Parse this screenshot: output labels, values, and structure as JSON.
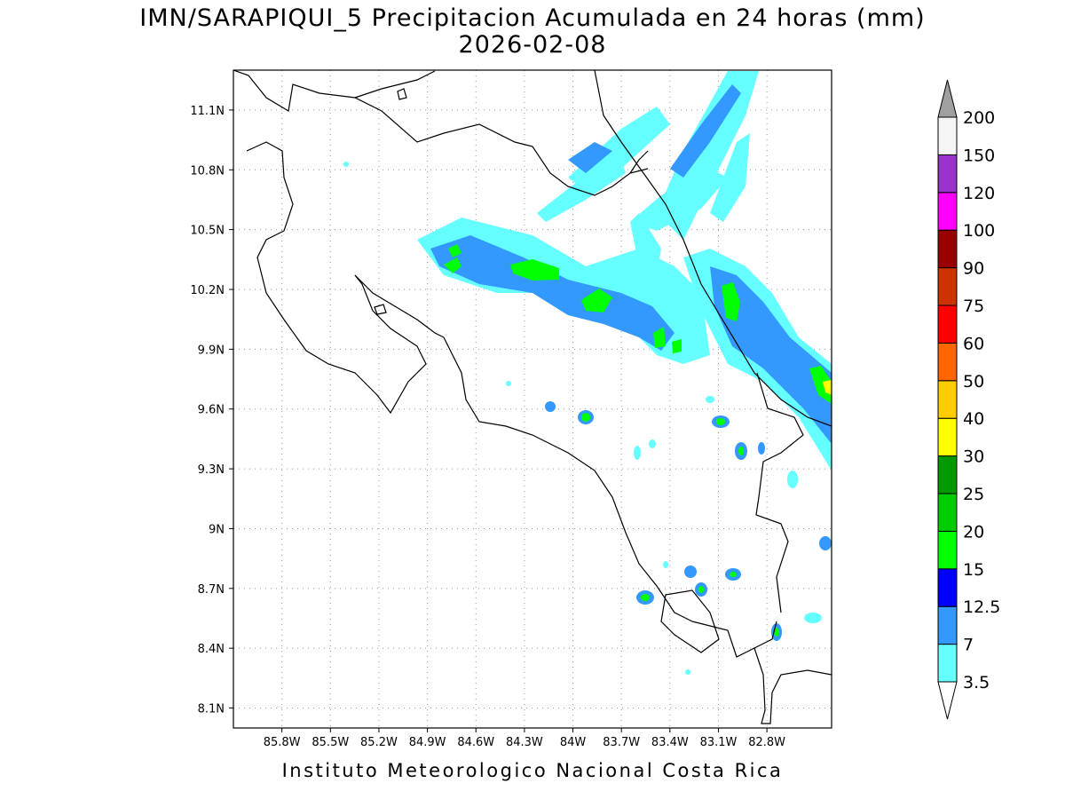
{
  "title": {
    "line1": "IMN/SARAPIQUI_5 Precipitacion Acumulada en 24 horas (mm)",
    "line2": "2026-02-08"
  },
  "footer": "Instituto Meteorologico Nacional Costa Rica",
  "map": {
    "lon_range": [
      -86.1,
      -82.4
    ],
    "lat_range": [
      8.0,
      11.3
    ],
    "lat_ticks": [
      {
        "value": 11.1,
        "label": "11.1N"
      },
      {
        "value": 10.8,
        "label": "10.8N"
      },
      {
        "value": 10.5,
        "label": "10.5N"
      },
      {
        "value": 10.2,
        "label": "10.2N"
      },
      {
        "value": 9.9,
        "label": "9.9N"
      },
      {
        "value": 9.6,
        "label": "9.6N"
      },
      {
        "value": 9.3,
        "label": "9.3N"
      },
      {
        "value": 9.0,
        "label": "9N"
      },
      {
        "value": 8.7,
        "label": "8.7N"
      },
      {
        "value": 8.4,
        "label": "8.4N"
      },
      {
        "value": 8.1,
        "label": "8.1N"
      }
    ],
    "lon_ticks": [
      {
        "value": -85.8,
        "label": "85.8W"
      },
      {
        "value": -85.5,
        "label": "85.5W"
      },
      {
        "value": -85.2,
        "label": "85.2W"
      },
      {
        "value": -84.9,
        "label": "84.9W"
      },
      {
        "value": -84.6,
        "label": "84.6W"
      },
      {
        "value": -84.3,
        "label": "84.3W"
      },
      {
        "value": -84.0,
        "label": "84W"
      },
      {
        "value": -83.7,
        "label": "83.7W"
      },
      {
        "value": -83.4,
        "label": "83.4W"
      },
      {
        "value": -83.1,
        "label": "83.1W"
      },
      {
        "value": -82.8,
        "label": "82.8W"
      }
    ],
    "gridlines": true
  },
  "legend": {
    "levels": [
      {
        "label": "3.5",
        "color": "#66ffff"
      },
      {
        "label": "7",
        "color": "#3399ff"
      },
      {
        "label": "12.5",
        "color": "#0000ff"
      },
      {
        "label": "15",
        "color": "#00ff00"
      },
      {
        "label": "20",
        "color": "#00cc00"
      },
      {
        "label": "25",
        "color": "#009900"
      },
      {
        "label": "30",
        "color": "#ffff00"
      },
      {
        "label": "40",
        "color": "#ffcc00"
      },
      {
        "label": "50",
        "color": "#ff6600"
      },
      {
        "label": "60",
        "color": "#ff0000"
      },
      {
        "label": "75",
        "color": "#cc3300"
      },
      {
        "label": "90",
        "color": "#990000"
      },
      {
        "label": "100",
        "color": "#ff00ff"
      },
      {
        "label": "120",
        "color": "#9933cc"
      },
      {
        "label": "150",
        "color": "#f5f5f5"
      },
      {
        "label": "200",
        "color": "#a0a0a0"
      }
    ],
    "extend_low_color": "#ffffff",
    "extend_high_color": "#a0a0a0"
  }
}
